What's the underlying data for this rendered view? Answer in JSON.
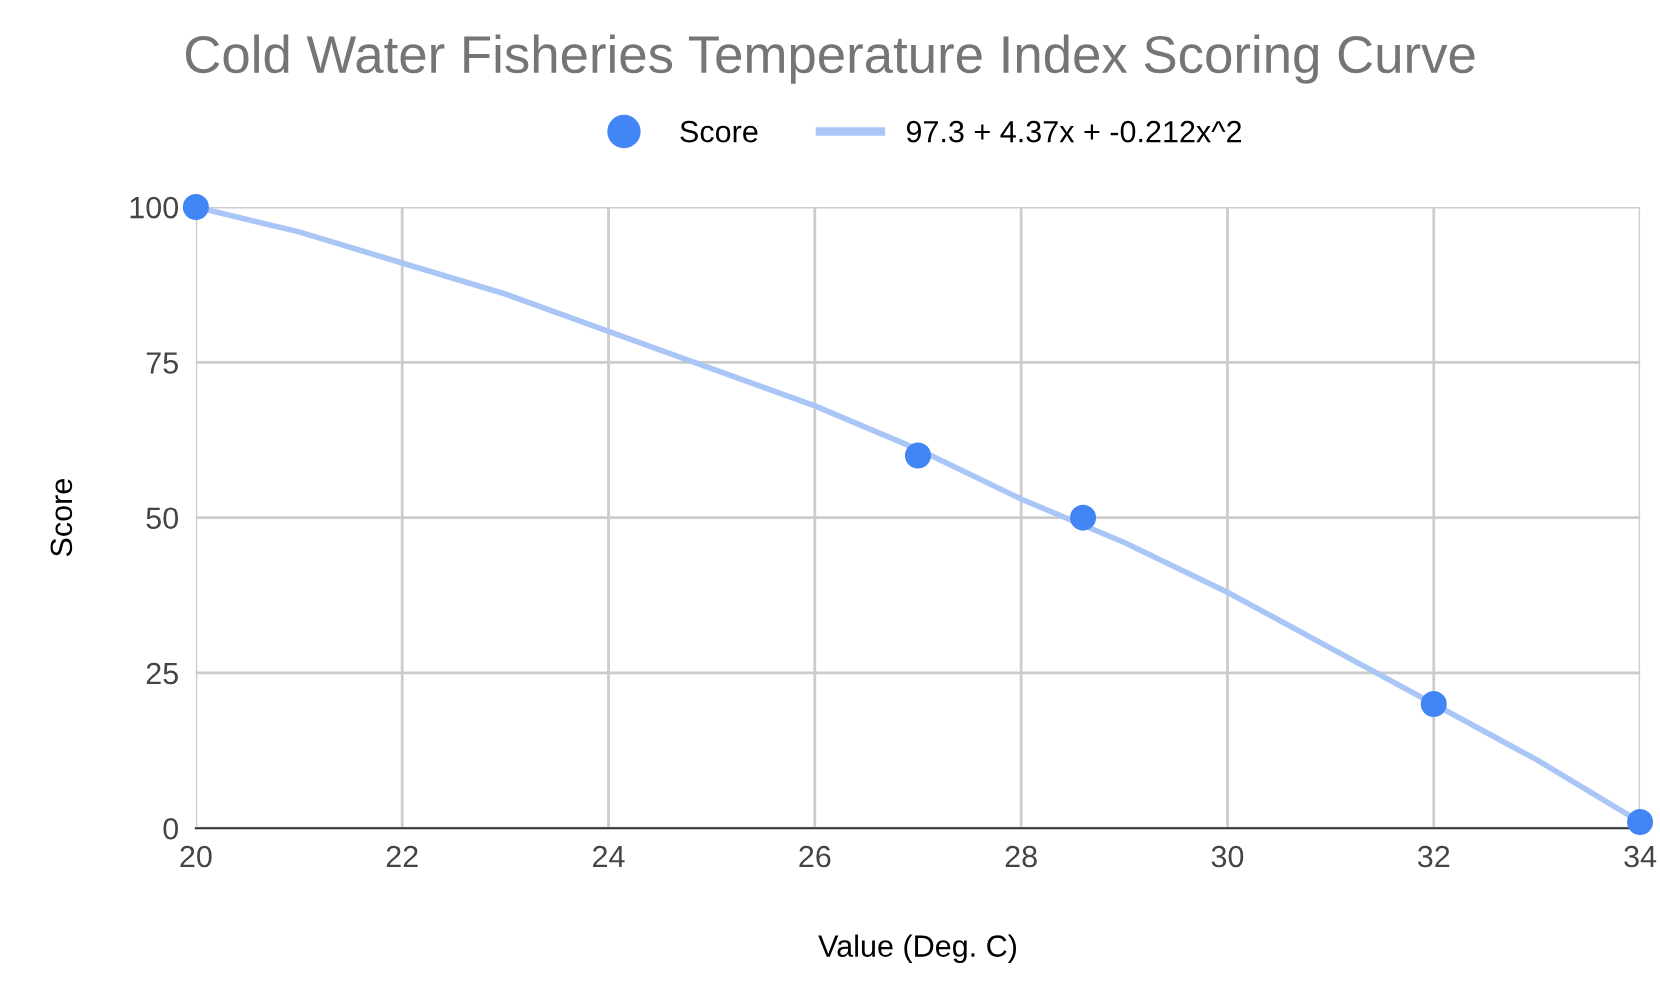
{
  "chart_data": {
    "type": "scatter",
    "title": "Cold Water Fisheries Temperature Index Scoring Curve",
    "xlabel": "Value (Deg. C)",
    "ylabel": "Score",
    "series": [
      {
        "name": "Score",
        "color": "#4285f4",
        "marker": "circle",
        "x": [
          20,
          27,
          28.6,
          32,
          34
        ],
        "values": [
          100,
          60,
          50,
          20,
          1
        ]
      },
      {
        "name": "97.3 + 4.37x + -0.212x^2",
        "type": "line",
        "color": "#a9c6f7",
        "marker": "none",
        "line_style": "solid",
        "x": [
          20,
          21,
          22,
          23,
          24,
          25,
          26,
          27,
          28,
          29,
          30,
          31,
          32,
          33,
          34
        ],
        "values": [
          100,
          96,
          91,
          86,
          80,
          74,
          68,
          61,
          53,
          46,
          38,
          29,
          20,
          11,
          1
        ]
      }
    ],
    "xlim": [
      20,
      34
    ],
    "ylim": [
      0,
      100
    ],
    "xticks": [
      20,
      22,
      24,
      26,
      28,
      30,
      32,
      34
    ],
    "yticks": [
      0,
      25,
      50,
      75,
      100
    ],
    "grid": true,
    "legend": "top"
  }
}
